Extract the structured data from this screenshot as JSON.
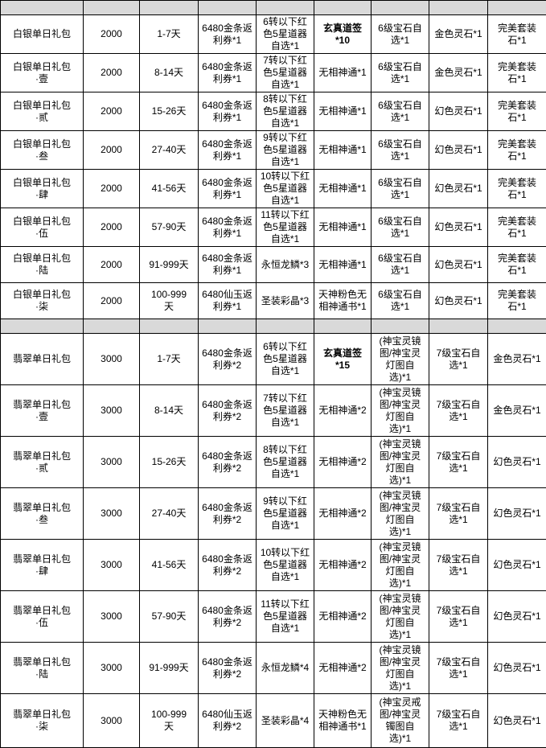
{
  "colors": {
    "grid": "#000000",
    "spacer_bg": "#d9d9d9",
    "cell_bg": "#ffffff",
    "text": "#000000"
  },
  "table": {
    "column_roles": [
      "package-name",
      "price",
      "days",
      "rebate-coupon",
      "item-1",
      "item-2",
      "item-3",
      "item-4",
      "item-5"
    ],
    "rows": [
      {
        "kind": "spacer",
        "group": "spacer",
        "bold": [],
        "cells": [
          "",
          "",
          "",
          "",
          "",
          "",
          "",
          "",
          ""
        ]
      },
      {
        "kind": "data",
        "group": "silver",
        "bold": [
          5
        ],
        "cells": [
          "白银单日礼包",
          "2000",
          "1-7天",
          "6480金条返\n利券*1",
          "6转以下红\n色5星道器\n自选*1",
          "玄真道签\n*10",
          "6级宝石自\n选*1",
          "金色灵石*1",
          "完美套装\n石*1"
        ]
      },
      {
        "kind": "data",
        "group": "silver",
        "bold": [],
        "cells": [
          "白银单日礼包\n·壹",
          "2000",
          "8-14天",
          "6480金条返\n利券*1",
          "7转以下红\n色5星道器\n自选*1",
          "无相神通*1",
          "6级宝石自\n选*1",
          "金色灵石*1",
          "完美套装\n石*1"
        ]
      },
      {
        "kind": "data",
        "group": "silver",
        "bold": [],
        "cells": [
          "白银单日礼包\n·贰",
          "2000",
          "15-26天",
          "6480金条返\n利券*1",
          "8转以下红\n色5星道器\n自选*1",
          "无相神通*1",
          "6级宝石自\n选*1",
          "幻色灵石*1",
          "完美套装\n石*1"
        ]
      },
      {
        "kind": "data",
        "group": "silver",
        "bold": [],
        "cells": [
          "白银单日礼包\n·叁",
          "2000",
          "27-40天",
          "6480金条返\n利券*1",
          "9转以下红\n色5星道器\n自选*1",
          "无相神通*1",
          "6级宝石自\n选*1",
          "幻色灵石*1",
          "完美套装\n石*1"
        ]
      },
      {
        "kind": "data",
        "group": "silver",
        "bold": [],
        "cells": [
          "白银单日礼包\n·肆",
          "2000",
          "41-56天",
          "6480金条返\n利券*1",
          "10转以下红\n色5星道器\n自选*1",
          "无相神通*1",
          "6级宝石自\n选*1",
          "幻色灵石*1",
          "完美套装\n石*1"
        ]
      },
      {
        "kind": "data",
        "group": "silver",
        "bold": [],
        "cells": [
          "白银单日礼包\n·伍",
          "2000",
          "57-90天",
          "6480金条返\n利券*1",
          "11转以下红\n色5星道器\n自选*1",
          "无相神通*1",
          "6级宝石自\n选*1",
          "幻色灵石*1",
          "完美套装\n石*1"
        ]
      },
      {
        "kind": "data",
        "group": "silver",
        "bold": [],
        "cells": [
          "白银单日礼包\n·陆",
          "2000",
          "91-999天",
          "6480金条返\n利券*1",
          "永恒龙鳞*3",
          "无相神通*1",
          "6级宝石自\n选*1",
          "幻色灵石*1",
          "完美套装\n石*1"
        ]
      },
      {
        "kind": "data",
        "group": "silver",
        "bold": [],
        "cells": [
          "白银单日礼包\n·柒",
          "2000",
          "100-999\n天",
          "6480仙玉返\n利券*1",
          "圣装彩晶*3",
          "天神粉色无\n相神通书*1",
          "6级宝石自\n选*1",
          "幻色灵石*1",
          "完美套装\n石*1"
        ]
      },
      {
        "kind": "spacer",
        "group": "spacer",
        "bold": [],
        "cells": [
          "",
          "",
          "",
          "",
          "",
          "",
          "",
          "",
          ""
        ]
      },
      {
        "kind": "data",
        "group": "jade",
        "bold": [
          5
        ],
        "cells": [
          "翡翠单日礼包",
          "3000",
          "1-7天",
          "6480金条返\n利券*2",
          "6转以下红\n色5星道器\n自选*1",
          "玄真道签\n*15",
          "(神宝灵镜\n图/神宝灵\n灯图自\n选)*1",
          "7级宝石自\n选*1",
          "金色灵石*1"
        ]
      },
      {
        "kind": "data",
        "group": "jade",
        "bold": [],
        "cells": [
          "翡翠单日礼包\n·壹",
          "3000",
          "8-14天",
          "6480金条返\n利券*2",
          "7转以下红\n色5星道器\n自选*1",
          "无相神通*2",
          "(神宝灵镜\n图/神宝灵\n灯图自\n选)*1",
          "7级宝石自\n选*1",
          "金色灵石*1"
        ]
      },
      {
        "kind": "data",
        "group": "jade",
        "bold": [],
        "cells": [
          "翡翠单日礼包\n·贰",
          "3000",
          "15-26天",
          "6480金条返\n利券*2",
          "8转以下红\n色5星道器\n自选*1",
          "无相神通*2",
          "(神宝灵镜\n图/神宝灵\n灯图自\n选)*1",
          "7级宝石自\n选*1",
          "幻色灵石*1"
        ]
      },
      {
        "kind": "data",
        "group": "jade",
        "bold": [],
        "cells": [
          "翡翠单日礼包\n·叁",
          "3000",
          "27-40天",
          "6480金条返\n利券*2",
          "9转以下红\n色5星道器\n自选*1",
          "无相神通*2",
          "(神宝灵镜\n图/神宝灵\n灯图自\n选)*1",
          "7级宝石自\n选*1",
          "幻色灵石*1"
        ]
      },
      {
        "kind": "data",
        "group": "jade",
        "bold": [],
        "cells": [
          "翡翠单日礼包\n·肆",
          "3000",
          "41-56天",
          "6480金条返\n利券*2",
          "10转以下红\n色5星道器\n自选*1",
          "无相神通*2",
          "(神宝灵镜\n图/神宝灵\n灯图自\n选)*1",
          "7级宝石自\n选*1",
          "幻色灵石*1"
        ]
      },
      {
        "kind": "data",
        "group": "jade",
        "bold": [],
        "cells": [
          "翡翠单日礼包\n·伍",
          "3000",
          "57-90天",
          "6480金条返\n利券*2",
          "11转以下红\n色5星道器\n自选*1",
          "无相神通*2",
          "(神宝灵镜\n图/神宝灵\n灯图自\n选)*1",
          "7级宝石自\n选*1",
          "幻色灵石*1"
        ]
      },
      {
        "kind": "data",
        "group": "jade",
        "bold": [],
        "cells": [
          "翡翠单日礼包\n·陆",
          "3000",
          "91-999天",
          "6480金条返\n利券*2",
          "永恒龙鳞*4",
          "无相神通*2",
          "(神宝灵镜\n图/神宝灵\n灯图自\n选)*1",
          "7级宝石自\n选*1",
          "幻色灵石*1"
        ]
      },
      {
        "kind": "data",
        "group": "jade",
        "bold": [],
        "cells": [
          "翡翠单日礼包\n·柒",
          "3000",
          "100-999\n天",
          "6480仙玉返\n利券*2",
          "圣装彩晶*4",
          "天神粉色无\n相神通书*1",
          "(神宝灵戒\n图/神宝灵\n镯图自\n选)*1",
          "7级宝石自\n选*1",
          "幻色灵石*1"
        ]
      }
    ]
  }
}
